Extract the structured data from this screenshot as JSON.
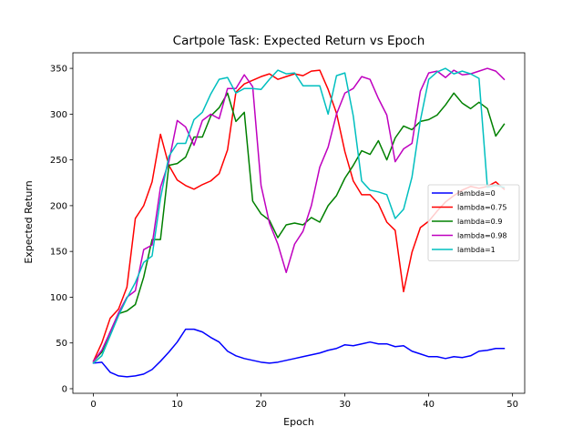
{
  "chart_data": {
    "type": "line",
    "title": "Cartpole Task: Expected Return vs Epoch",
    "xlabel": "Epoch",
    "ylabel": "Expected Return",
    "xlim": [
      -2.45,
      51.45
    ],
    "ylim": [
      -5,
      367
    ],
    "xticks": [
      0,
      10,
      20,
      30,
      40,
      50
    ],
    "yticks": [
      0,
      50,
      100,
      150,
      200,
      250,
      300,
      350
    ],
    "grid": false,
    "legend_position": "center-right",
    "x": [
      0,
      1,
      2,
      3,
      4,
      5,
      6,
      7,
      8,
      9,
      10,
      11,
      12,
      13,
      14,
      15,
      16,
      17,
      18,
      19,
      20,
      21,
      22,
      23,
      24,
      25,
      26,
      27,
      28,
      29,
      30,
      31,
      32,
      33,
      34,
      35,
      36,
      37,
      38,
      39,
      40,
      41,
      42,
      43,
      44,
      45,
      46,
      47,
      48,
      49
    ],
    "series": [
      {
        "name": "lambda=0",
        "color": "#0000ff",
        "values": [
          28,
          29,
          18,
          14,
          13,
          14,
          16,
          21,
          30,
          40,
          51,
          65,
          65,
          62,
          56,
          51,
          41,
          36,
          33,
          31,
          29,
          28,
          29,
          31,
          33,
          35,
          37,
          39,
          42,
          44,
          48,
          47,
          49,
          51,
          49,
          49,
          46,
          47,
          41,
          38,
          35,
          35,
          33,
          35,
          34,
          36,
          41,
          42,
          44,
          44
        ]
      },
      {
        "name": "lambda=0.75",
        "color": "#ff0000",
        "values": [
          30,
          50,
          77,
          87,
          111,
          186,
          200,
          226,
          278,
          244,
          228,
          222,
          218,
          223,
          227,
          235,
          261,
          324,
          333,
          337,
          341,
          344,
          338,
          341,
          344,
          342,
          347,
          348,
          327,
          301,
          259,
          227,
          212,
          212,
          202,
          182,
          173,
          106,
          149,
          176,
          183,
          194,
          204,
          211,
          217,
          221,
          219,
          221,
          226,
          218
        ]
      },
      {
        "name": "lambda=0.9",
        "color": "#008000",
        "values": [
          30,
          40,
          62,
          82,
          85,
          92,
          122,
          163,
          163,
          244,
          246,
          253,
          275,
          275,
          298,
          307,
          323,
          292,
          302,
          205,
          191,
          184,
          165,
          179,
          181,
          179,
          187,
          182,
          200,
          211,
          230,
          244,
          260,
          256,
          271,
          250,
          274,
          287,
          283,
          292,
          294,
          299,
          310,
          323,
          312,
          306,
          313,
          306,
          276,
          289
        ]
      },
      {
        "name": "lambda=0.98",
        "color": "#bf00bf",
        "values": [
          30,
          42,
          62,
          83,
          100,
          107,
          152,
          157,
          220,
          248,
          293,
          286,
          266,
          293,
          300,
          295,
          328,
          328,
          343,
          330,
          222,
          181,
          158,
          127,
          158,
          172,
          200,
          242,
          264,
          300,
          323,
          328,
          341,
          338,
          317,
          299,
          248,
          262,
          268,
          325,
          345,
          347,
          340,
          348,
          343,
          344,
          347,
          350,
          347,
          338
        ]
      },
      {
        "name": "lambda=1",
        "color": "#00bfbf",
        "values": [
          28,
          36,
          58,
          80,
          99,
          116,
          138,
          145,
          208,
          254,
          268,
          268,
          294,
          302,
          322,
          338,
          340,
          323,
          328,
          328,
          327,
          338,
          348,
          344,
          345,
          331,
          331,
          331,
          300,
          342,
          345,
          298,
          227,
          217,
          215,
          212,
          186,
          196,
          231,
          293,
          338,
          346,
          350,
          344,
          347,
          344,
          339,
          220,
          222,
          220
        ]
      }
    ]
  }
}
